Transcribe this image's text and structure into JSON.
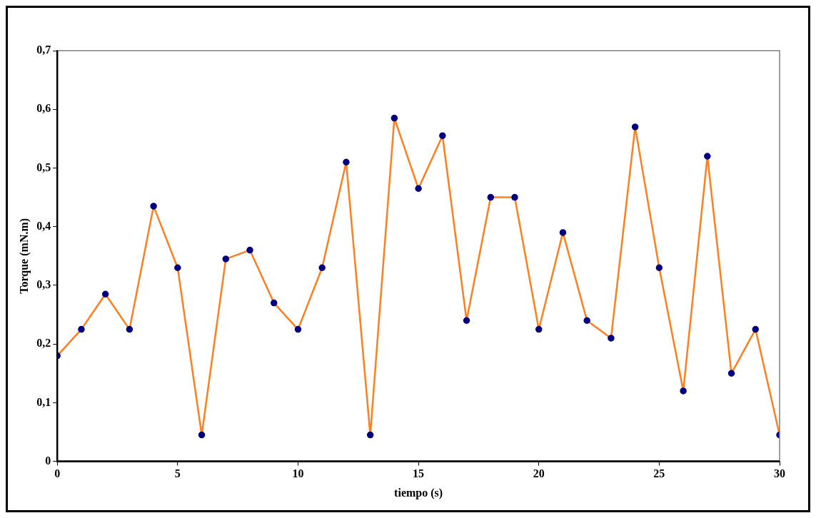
{
  "chart_data": {
    "type": "line",
    "xlabel": "tiempo (s)",
    "ylabel": "Torque (mN.m)",
    "x": [
      0,
      1,
      2,
      3,
      4,
      5,
      6,
      7,
      8,
      9,
      10,
      11,
      12,
      13,
      14,
      15,
      16,
      17,
      18,
      19,
      20,
      21,
      22,
      23,
      24,
      25,
      26,
      27,
      28,
      29,
      30
    ],
    "series": [
      {
        "color": "#ff7f1e",
        "values": [
          0.18,
          0.225,
          0.285,
          0.225,
          0.435,
          0.33,
          0.045,
          0.345,
          0.36,
          0.27,
          0.225,
          0.33,
          0.51,
          0.045,
          0.585,
          0.465,
          0.555,
          0.24,
          0.45,
          0.45,
          0.225,
          0.39,
          0.24,
          0.21,
          0.57,
          0.33,
          0.12,
          0.52,
          0.15,
          0.225,
          0.045
        ]
      }
    ],
    "marker": "circle",
    "line_style": "solid",
    "grid": false,
    "legend": false,
    "xlim": [
      0,
      30
    ],
    "xticks": [
      0,
      5,
      10,
      15,
      20,
      25,
      30
    ],
    "ylim": [
      0,
      0.7
    ],
    "yticks": [
      {
        "value": 0,
        "label": "0"
      },
      {
        "value": 0.1,
        "label": "0,1"
      },
      {
        "value": 0.2,
        "label": "0,2"
      },
      {
        "value": 0.3,
        "label": "0,3"
      },
      {
        "value": 0.4,
        "label": "0,4"
      },
      {
        "value": 0.5,
        "label": "0,5"
      },
      {
        "value": 0.6,
        "label": "0,6"
      },
      {
        "value": 0.7,
        "label": "0,7"
      }
    ]
  }
}
